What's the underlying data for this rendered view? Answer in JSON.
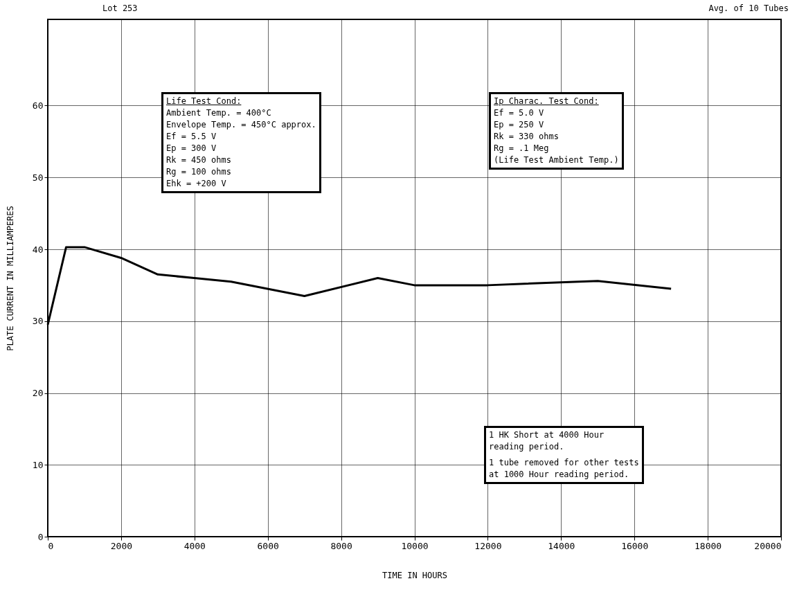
{
  "chart_data": {
    "type": "line",
    "xlabel": "TIME IN HOURS",
    "ylabel": "PLATE CURRENT IN MILLIAMPERES",
    "x": [
      0,
      500,
      1000,
      2000,
      3000,
      4000,
      5000,
      7000,
      9000,
      10000,
      12000,
      15000,
      17000
    ],
    "series": [
      {
        "color": "#000000",
        "values": [
          29.5,
          40.3,
          40.3,
          38.8,
          36.5,
          36,
          35.5,
          33.5,
          36,
          35,
          35,
          35.6,
          34.5
        ]
      }
    ],
    "xlim": [
      0,
      20000
    ],
    "xticks": [
      0,
      2000,
      4000,
      6000,
      8000,
      10000,
      12000,
      14000,
      16000,
      18000,
      20000
    ],
    "ylim": [
      0,
      72
    ],
    "yticks": [
      0,
      10,
      20,
      30,
      40,
      50,
      60
    ],
    "grid": true,
    "marker": "none",
    "line_style": "solid",
    "annotations": [
      "Lot 253",
      "Avg. of 10 Tubes",
      "Life Test Cond:\nAmbient Temp. = 400°C\nEnvelope Temp. = 450°C approx.\nEf = 5.5 V\nEp = 300 V\nRk = 450 ohms\nRg = 100 ohms\nEhk = +200 V",
      "Ip Charac. Test Cond:\nEf = 5.0 V\nEp = 250 V\nRk = 330 ohms\nRg = .1 Meg\n(Life Test Ambient Temp.)",
      "1 HK Short at 4000 Hour\nreading period.\n\n1 tube removed for other tests\nat 1000 Hour reading period."
    ]
  }
}
